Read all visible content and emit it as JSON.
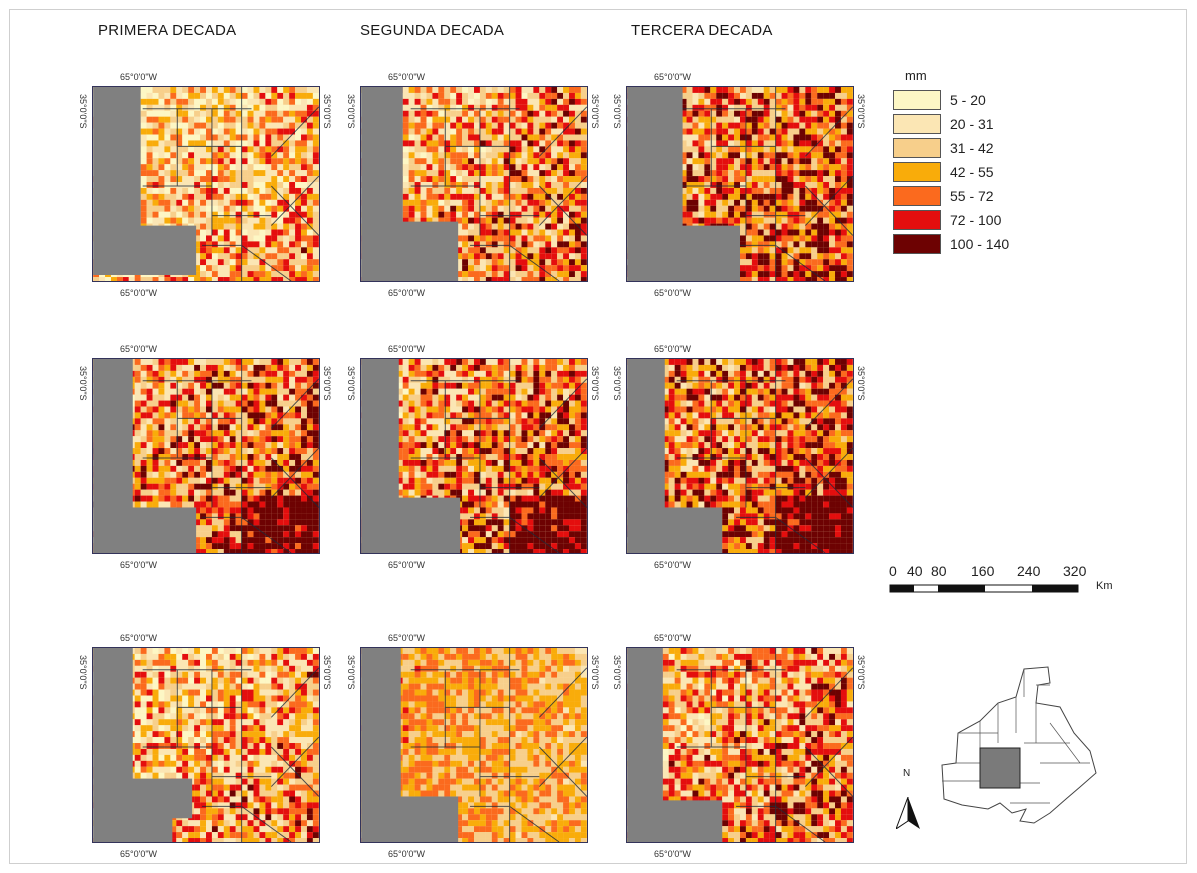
{
  "figure": {
    "column_titles": [
      "PRIMERA DECADA",
      "SEGUNDA DECADA",
      "TERCERA DECADA"
    ],
    "lon_label": "65°0'0\"W",
    "lat_label": "35°0'0\"S"
  },
  "legend": {
    "title": "mm",
    "classes": [
      {
        "label": "5 - 20",
        "color": "#fdf7c5"
      },
      {
        "label": "20 - 31",
        "color": "#fbe6b4"
      },
      {
        "label": "31 - 42",
        "color": "#f7cf8b"
      },
      {
        "label": "42 - 55",
        "color": "#f9ac0a"
      },
      {
        "label": "55 - 72",
        "color": "#fb6a1e"
      },
      {
        "label": "72 - 100",
        "color": "#e40e0e"
      },
      {
        "label": "100 - 140",
        "color": "#6d0202"
      }
    ]
  },
  "scale_bar": {
    "labels": [
      "0",
      "40",
      "80",
      "160",
      "240",
      "320"
    ],
    "unit": "Km"
  },
  "north_arrow": {
    "letter": "N"
  },
  "masked_area_color": "#808080"
}
